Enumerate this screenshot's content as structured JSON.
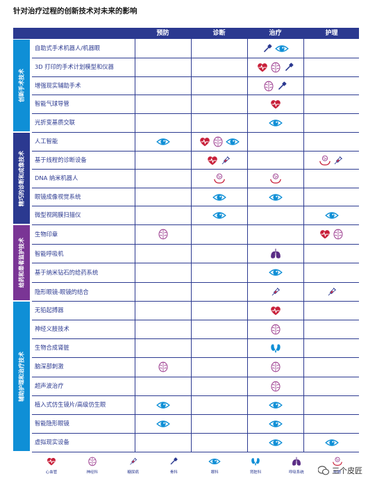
{
  "title": "针对治疗过程的创新技术对未来的影响",
  "columns": [
    "预防",
    "诊断",
    "治疗",
    "护理"
  ],
  "groups": [
    {
      "label": "创新手术技术",
      "color": "#0f8fd6",
      "rows": 5
    },
    {
      "label": "精巧的诊断和成像技术",
      "color": "#2b3990",
      "rows": 5
    },
    {
      "label": "给药和患者监护技术",
      "color": "#7a3595",
      "rows": 4
    },
    {
      "label": "辅助护理和治疗技术",
      "color": "#0f8fd6",
      "rows": 8
    }
  ],
  "rows": [
    {
      "name": "自助式手术机器人/机器眼",
      "cells": [
        [],
        [],
        [
          "orthopedics",
          "ophthalmology"
        ],
        []
      ]
    },
    {
      "name": "3D 打印的手术计划模型和仪器",
      "cells": [
        [],
        [],
        [
          "cardiovascular",
          "neurology",
          "orthopedics"
        ],
        []
      ]
    },
    {
      "name": "增强现实辅助手术",
      "cells": [
        [],
        [],
        [
          "neurology",
          "orthopedics"
        ],
        []
      ]
    },
    {
      "name": "智能气球导管",
      "cells": [
        [],
        [],
        [
          "cardiovascular"
        ],
        []
      ]
    },
    {
      "name": "光折变基质交联",
      "cells": [
        [],
        [],
        [
          "ophthalmology"
        ],
        []
      ]
    },
    {
      "name": "人工智能",
      "cells": [
        [
          "ophthalmology"
        ],
        [
          "cardiovascular",
          "neurology",
          "ophthalmology"
        ],
        [],
        []
      ]
    },
    {
      "name": "基于线程的诊断设备",
      "cells": [
        [],
        [
          "cardiovascular",
          "diabetes"
        ],
        [],
        [
          "cells",
          "diabetes"
        ]
      ]
    },
    {
      "name": "DNA 纳米机器人",
      "cells": [
        [],
        [
          "cells"
        ],
        [
          "cells"
        ],
        []
      ]
    },
    {
      "name": "眼镜成像视觉系统",
      "cells": [
        [],
        [
          "ophthalmology"
        ],
        [
          "ophthalmology"
        ],
        []
      ]
    },
    {
      "name": "微型视网膜扫描仪",
      "cells": [
        [],
        [
          "ophthalmology"
        ],
        [],
        [
          "ophthalmology"
        ]
      ]
    },
    {
      "name": "生物印章",
      "cells": [
        [
          "neurology"
        ],
        [],
        [],
        [
          "cardiovascular",
          "neurology"
        ]
      ]
    },
    {
      "name": "智能呼吸机",
      "cells": [
        [],
        [],
        [
          "respiratory"
        ],
        []
      ]
    },
    {
      "name": "基于纳米钻石的给药系统",
      "cells": [
        [],
        [],
        [
          "ophthalmology"
        ],
        []
      ]
    },
    {
      "name": "隐形眼镜-眼镜的结合",
      "cells": [
        [],
        [],
        [
          "diabetes"
        ],
        [
          "diabetes"
        ]
      ]
    },
    {
      "name": "无铅起搏器",
      "cells": [
        [],
        [],
        [
          "cardiovascular"
        ],
        []
      ]
    },
    {
      "name": "神经义肢技术",
      "cells": [
        [],
        [],
        [
          "neurology"
        ],
        []
      ]
    },
    {
      "name": "生物合成肾脏",
      "cells": [
        [],
        [],
        [
          "nephrology"
        ],
        []
      ]
    },
    {
      "name": "脑深部刺激",
      "cells": [
        [
          "neurology"
        ],
        [],
        [
          "neurology"
        ],
        []
      ]
    },
    {
      "name": "超声波治疗",
      "cells": [
        [],
        [],
        [
          "neurology"
        ],
        []
      ]
    },
    {
      "name": "植入式仿生镜片/高级仿生眼",
      "cells": [
        [
          "ophthalmology"
        ],
        [],
        [
          "ophthalmology"
        ],
        []
      ]
    },
    {
      "name": "智能隐形眼镜",
      "cells": [
        [
          "ophthalmology"
        ],
        [],
        [
          "ophthalmology"
        ],
        []
      ]
    },
    {
      "name": "虚拟现实设备",
      "cells": [
        [],
        [],
        [
          "ophthalmology"
        ],
        [
          "ophthalmology"
        ]
      ]
    }
  ],
  "legend": [
    {
      "icon": "cardiovascular",
      "label": "心血管"
    },
    {
      "icon": "neurology",
      "label": "神经科"
    },
    {
      "icon": "diabetes",
      "label": "糖尿病"
    },
    {
      "icon": "orthopedics",
      "label": "骨科"
    },
    {
      "icon": "ophthalmology",
      "label": "眼科"
    },
    {
      "icon": "nephrology",
      "label": "肾脏科"
    },
    {
      "icon": "respiratory",
      "label": "呼吸系统"
    },
    {
      "icon": "cells",
      "label": "细胞"
    }
  ],
  "colors": {
    "header": "#2b3990",
    "red": "#c8203a",
    "purple": "#9b3b8e",
    "blue": "#0f8fd6",
    "navy": "#2b3990",
    "respiratory": "#5b2d86"
  },
  "watermark": "三个皮匠"
}
